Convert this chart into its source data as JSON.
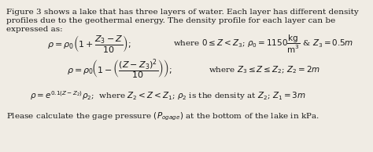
{
  "background_color": "#f0ece4",
  "text_color": "#1a1a1a",
  "figsize": [
    4.74,
    1.94
  ],
  "dpi": 100,
  "intro_line1": "Figure 3 shows a lake that has three layers of water. Each layer has different density",
  "intro_line2": "profiles due to the geothermal energy. The density profile for each layer can be",
  "intro_line3": "expressed as:",
  "eq1_left": "$\\rho = \\rho_0\\left(1 + \\dfrac{Z_3 - Z}{10}\\right);$",
  "eq1_right": "where $0 \\leq Z < Z_3$; $\\rho_0 = 1150\\dfrac{\\mathrm{kg}}{\\mathrm{m}^3}$ & $Z_3 = 0.5m$",
  "eq2_left": "$\\rho = \\rho_0\\!\\left(1 - \\left(\\dfrac{(Z - Z_3)^2}{10}\\right)\\right);$",
  "eq2_right": "where $Z_3 \\leq Z \\leq Z_2$; $Z_2 = 2m$",
  "eq3": "$\\rho = e^{0.1(Z-Z_2)}\\rho_2$;  where $Z_2 < Z < Z_1$; $\\rho_2$ is the density at $Z_2$; $Z_1 = 3m$",
  "footer": "Please calculate the gage pressure $(P_{ogage})$ at the bottom of the lake in kPa.",
  "intro_fontsize": 7.5,
  "eq_fontsize": 8.0,
  "eq3_fontsize": 7.5,
  "footer_fontsize": 7.5
}
